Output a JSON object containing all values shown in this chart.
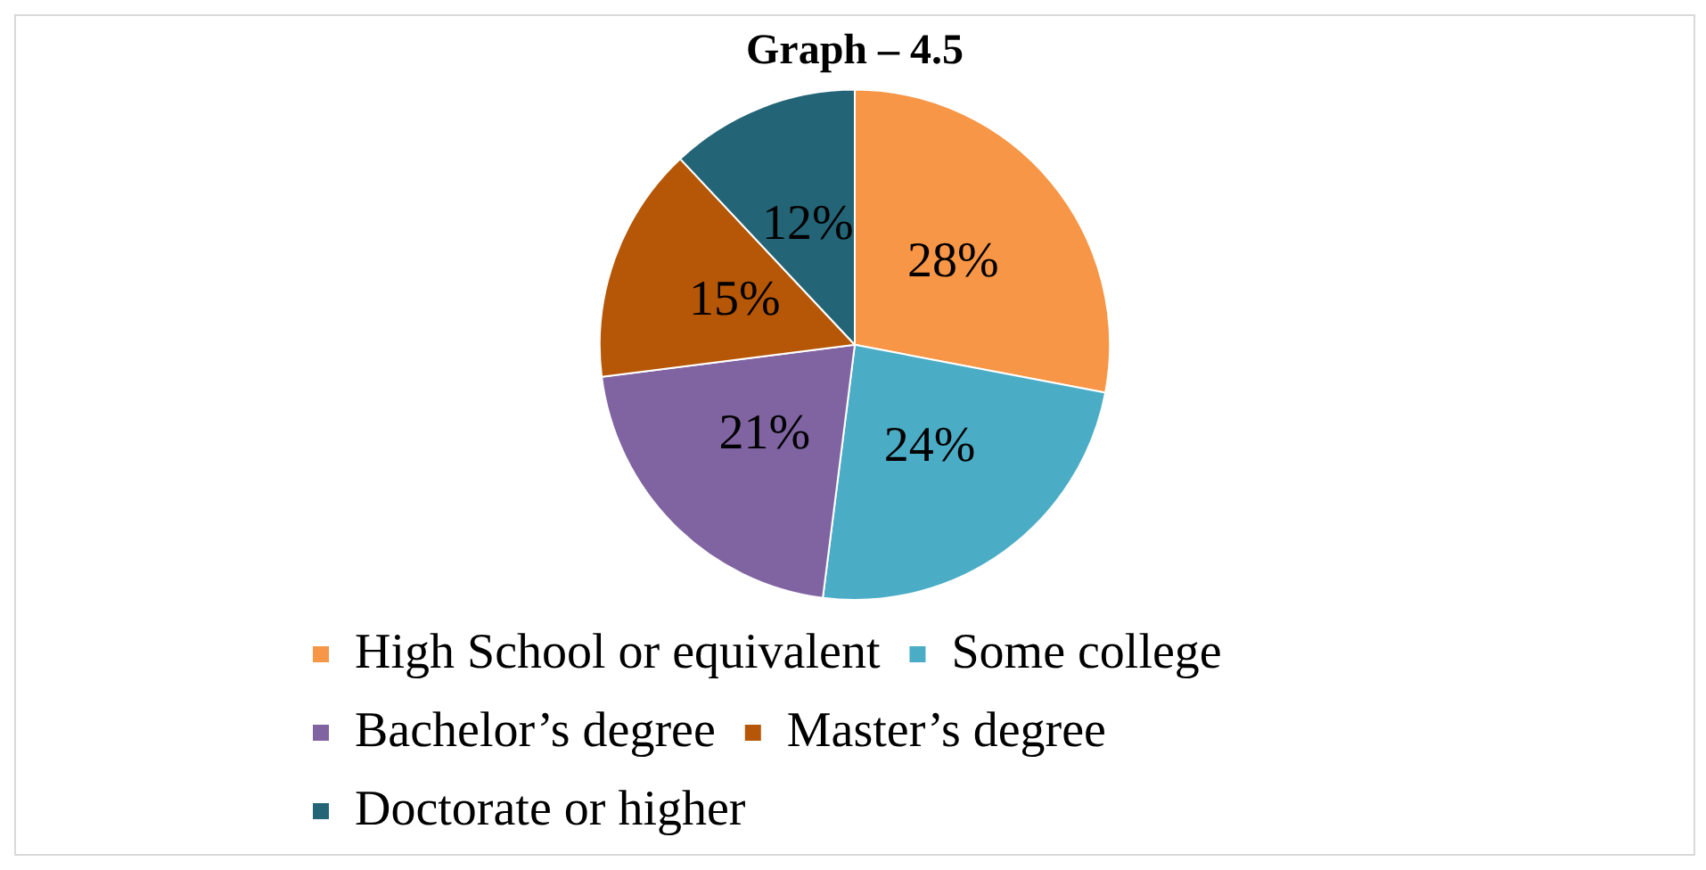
{
  "chart_data": {
    "type": "pie",
    "title": "Graph – 4.5",
    "categories": [
      "High School or equivalent",
      "Some college",
      "Bachelor’s degree",
      "Master’s degree",
      "Doctorate or higher"
    ],
    "values": [
      28,
      24,
      21,
      15,
      12
    ],
    "colors": [
      "#f79646",
      "#4bacc6",
      "#8064a2",
      "#b65708",
      "#236577"
    ],
    "value_labels": [
      "28%",
      "24%",
      "21%",
      "15%",
      "12%"
    ],
    "legend": "bottom"
  }
}
